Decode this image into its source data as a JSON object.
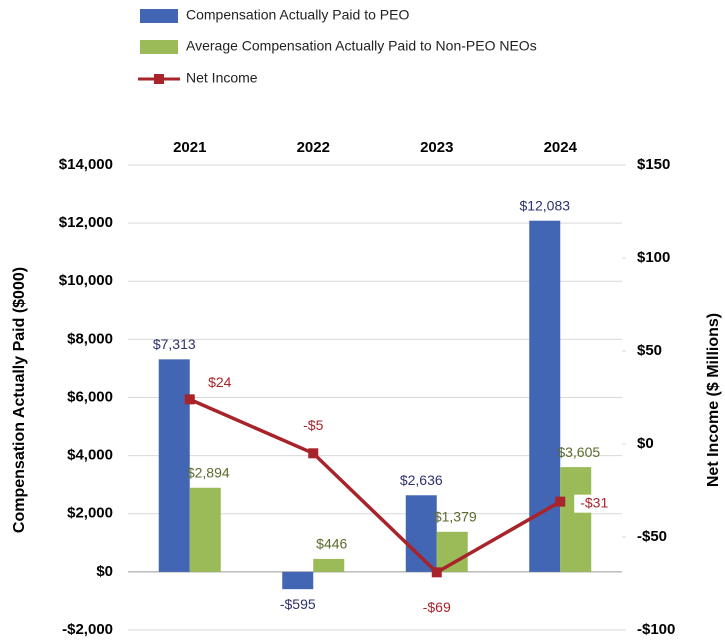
{
  "chart_data": {
    "type": "bar_line",
    "categories": [
      "2021",
      "2022",
      "2023",
      "2024"
    ],
    "y_label": "Compensation Actually Paid ($000)",
    "y2_label": "Net Income ($ Millions)",
    "ylim": [
      -2000,
      14000
    ],
    "yticks": [
      {
        "value": -2000,
        "label": "-$2,000"
      },
      {
        "value": 0,
        "label": "$0"
      },
      {
        "value": 2000,
        "label": "$2,000"
      },
      {
        "value": 4000,
        "label": "$4,000"
      },
      {
        "value": 6000,
        "label": "$6,000"
      },
      {
        "value": 8000,
        "label": "$8,000"
      },
      {
        "value": 10000,
        "label": "$10,000"
      },
      {
        "value": 12000,
        "label": "$12,000"
      },
      {
        "value": 14000,
        "label": "$14,000"
      }
    ],
    "y2lim": [
      -100,
      150
    ],
    "y2ticks": [
      {
        "value": -100,
        "label": "-$100"
      },
      {
        "value": -50,
        "label": "-$50"
      },
      {
        "value": 0,
        "label": "$0"
      },
      {
        "value": 50,
        "label": "$50"
      },
      {
        "value": 100,
        "label": "$100"
      },
      {
        "value": 150,
        "label": "$150"
      }
    ],
    "grid": true,
    "series": [
      {
        "name": "Compensation Actually Paid to PEO",
        "kind": "bar",
        "color": "#4266b3",
        "values": [
          7313,
          -595,
          2636,
          12083
        ],
        "value_labels": [
          "$7,313",
          "-$595",
          "$2,636",
          "$12,083"
        ]
      },
      {
        "name": "Average Compensation Actually Paid to Non-PEO NEOs",
        "kind": "bar",
        "color": "#9bbb59",
        "values": [
          2894,
          446,
          1379,
          3605
        ],
        "value_labels": [
          "$2,894",
          "$446",
          "$1,379",
          "$3,605"
        ]
      },
      {
        "name": "Net Income",
        "kind": "line",
        "axis": "y2",
        "color": "#a8232a",
        "values": [
          24,
          -5,
          -69,
          -31
        ],
        "value_labels": [
          "$24",
          "-$5",
          "-$69",
          "-$31"
        ]
      }
    ]
  }
}
